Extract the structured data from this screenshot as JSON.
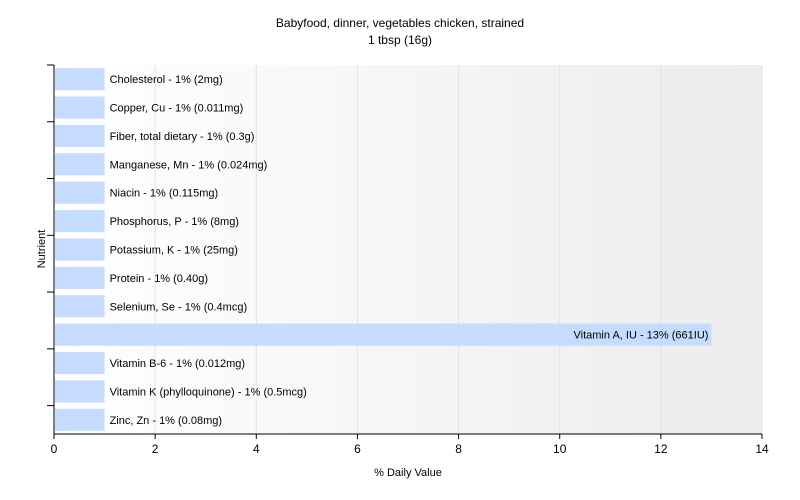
{
  "chart_data": {
    "type": "bar",
    "orientation": "horizontal",
    "title": "Babyfood, dinner, vegetables chicken, strained",
    "subtitle": "1 tbsp (16g)",
    "xlabel": "% Daily Value",
    "ylabel": "Nutrient",
    "xlim": [
      0,
      14
    ],
    "xticks": [
      0,
      2,
      4,
      6,
      8,
      10,
      12,
      14
    ],
    "grid": true,
    "bar_color": "#c5dcff",
    "categories": [
      "Cholesterol",
      "Copper, Cu",
      "Fiber, total dietary",
      "Manganese, Mn",
      "Niacin",
      "Phosphorus, P",
      "Potassium, K",
      "Protein",
      "Selenium, Se",
      "Vitamin A, IU",
      "Vitamin B-6",
      "Vitamin K (phylloquinone)",
      "Zinc, Zn"
    ],
    "values": [
      1,
      1,
      1,
      1,
      1,
      1,
      1,
      1,
      1,
      13,
      1,
      1,
      1
    ],
    "labels": [
      "Cholesterol - 1% (2mg)",
      "Copper, Cu - 1% (0.011mg)",
      "Fiber, total dietary - 1% (0.3g)",
      "Manganese, Mn - 1% (0.024mg)",
      "Niacin - 1% (0.115mg)",
      "Phosphorus, P - 1% (8mg)",
      "Potassium, K - 1% (25mg)",
      "Protein - 1% (0.40g)",
      "Selenium, Se - 1% (0.4mcg)",
      "Vitamin A, IU - 13% (661IU)",
      "Vitamin B-6 - 1% (0.012mg)",
      "Vitamin K (phylloquinone) - 1% (0.5mcg)",
      "Zinc, Zn - 1% (0.08mg)"
    ]
  }
}
